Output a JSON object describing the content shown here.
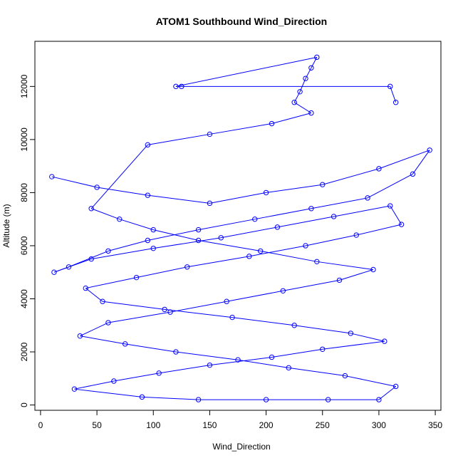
{
  "chart_data": {
    "type": "scatter",
    "title": "ATOM1 Southbound Wind_Direction",
    "xlabel": "Wind_Direction",
    "ylabel": "Altitude (m)",
    "xlim": [
      -5,
      355
    ],
    "ylim": [
      -200,
      13700
    ],
    "x_ticks": [
      0,
      50,
      100,
      150,
      200,
      250,
      300,
      350
    ],
    "y_ticks": [
      0,
      2000,
      4000,
      6000,
      8000,
      10000,
      12000
    ],
    "grid": false,
    "legend": "none",
    "series_color": "#0000ff",
    "marker": "open-circle",
    "connect_points": true,
    "series": [
      {
        "x": [
          10,
          50,
          95,
          150,
          200,
          250,
          300,
          345,
          330,
          290,
          240,
          190,
          140,
          95,
          60,
          25,
          12,
          45,
          100,
          160,
          210,
          260,
          310,
          320,
          280,
          235,
          185,
          130,
          85,
          40,
          55,
          110,
          170,
          225,
          275,
          305,
          250,
          205,
          150,
          105,
          65,
          30,
          90,
          140,
          200,
          255,
          300,
          315,
          270,
          220,
          175,
          120,
          75,
          35,
          60,
          115,
          165,
          215,
          265,
          295,
          245,
          195,
          140,
          100,
          70,
          45,
          95,
          150,
          205,
          240,
          225,
          230,
          235,
          240,
          245,
          120,
          125,
          310,
          315
        ],
        "y": [
          8600,
          8200,
          7900,
          7600,
          8000,
          8300,
          8900,
          9600,
          8700,
          7800,
          7400,
          7000,
          6600,
          6200,
          5800,
          5200,
          5000,
          5500,
          5900,
          6300,
          6700,
          7100,
          7500,
          6800,
          6400,
          6000,
          5600,
          5200,
          4800,
          4400,
          3900,
          3600,
          3300,
          3000,
          2700,
          2400,
          2100,
          1800,
          1500,
          1200,
          900,
          600,
          300,
          200,
          200,
          200,
          200,
          700,
          1100,
          1400,
          1700,
          2000,
          2300,
          2600,
          3100,
          3500,
          3900,
          4300,
          4700,
          5100,
          5400,
          5800,
          6200,
          6600,
          7000,
          7400,
          9800,
          10200,
          10600,
          11000,
          11400,
          11800,
          12300,
          12700,
          13100,
          12000,
          12000,
          12000,
          11400
        ]
      }
    ]
  }
}
